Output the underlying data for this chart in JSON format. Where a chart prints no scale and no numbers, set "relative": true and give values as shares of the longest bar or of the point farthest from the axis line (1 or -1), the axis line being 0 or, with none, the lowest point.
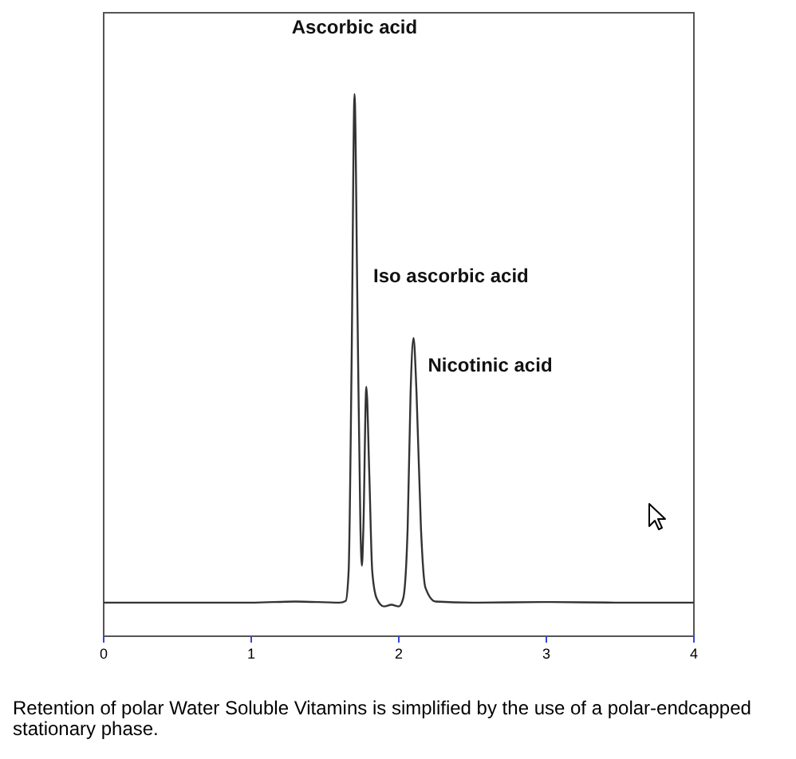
{
  "chart_data": {
    "type": "line",
    "relative": true,
    "xlim": [
      0,
      4
    ],
    "xticks": [
      0,
      1,
      2,
      3,
      4
    ],
    "x": [
      0,
      0.5,
      1.0,
      1.3,
      1.6,
      1.64,
      1.66,
      1.68,
      1.7,
      1.72,
      1.74,
      1.75,
      1.76,
      1.78,
      1.8,
      1.82,
      1.85,
      1.9,
      1.95,
      2.0,
      2.03,
      2.06,
      2.08,
      2.1,
      2.12,
      2.15,
      2.18,
      2.25,
      2.5,
      3.0,
      3.5,
      4.0
    ],
    "series": [
      {
        "color": "#333333",
        "values": [
          0.062,
          0.062,
          0.062,
          0.064,
          0.062,
          0.065,
          0.12,
          0.5,
          1.0,
          0.6,
          0.2,
          0.13,
          0.2,
          0.46,
          0.3,
          0.12,
          0.07,
          0.055,
          0.058,
          0.055,
          0.07,
          0.2,
          0.45,
          0.55,
          0.45,
          0.2,
          0.09,
          0.064,
          0.062,
          0.063,
          0.062,
          0.062
        ]
      }
    ],
    "grid": false,
    "marker": "none",
    "line_style": "solid",
    "annotations": [
      {
        "text": "Ascorbic acid",
        "x": 1.7,
        "y": 1.0
      },
      "Iso ascorbic acid",
      {
        "text": "Nicotinic acid",
        "x": 2.1,
        "y": 0.55
      },
      "Retention of polar Water Soluble Vitamins is simplified by the use of a polar-endcapped stationary phase."
    ]
  }
}
